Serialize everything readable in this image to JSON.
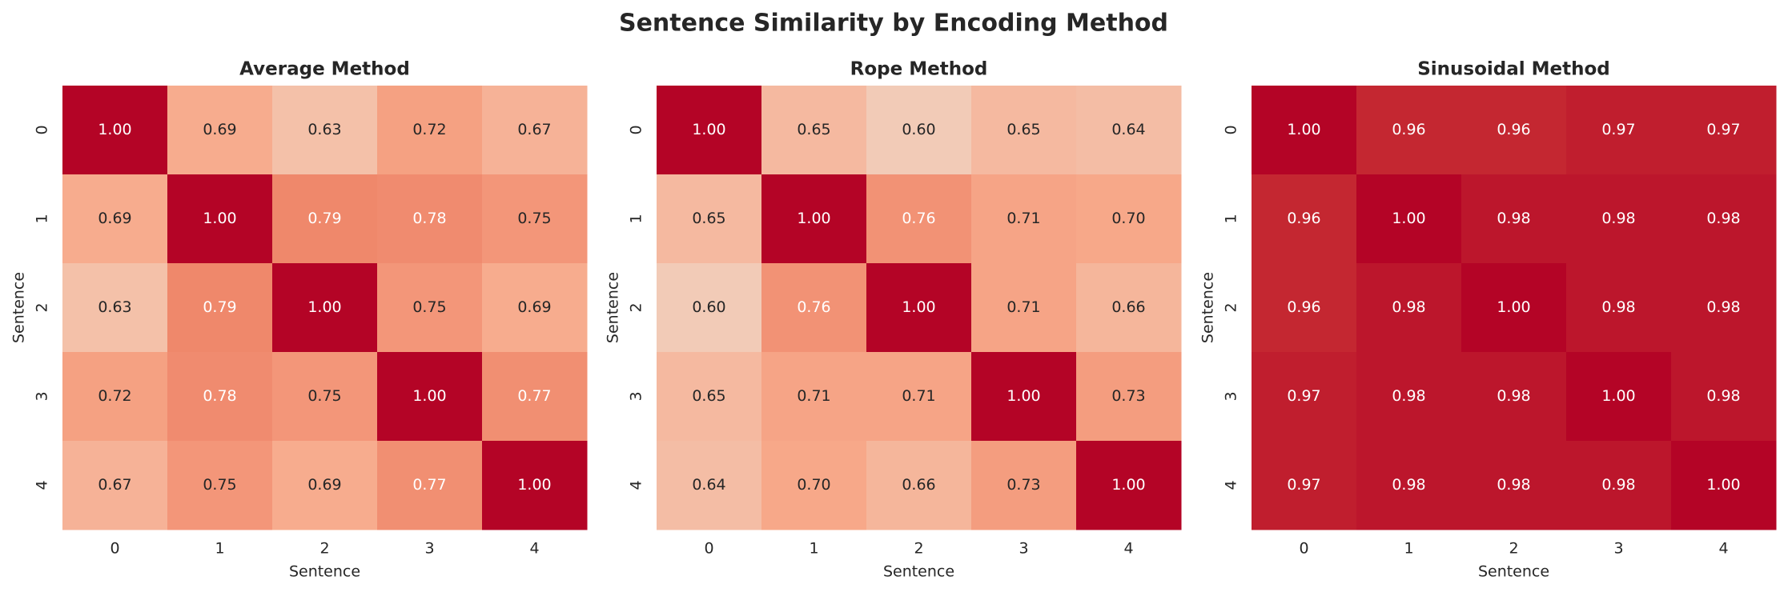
{
  "title": "Sentence Similarity by Encoding Method",
  "chart_data": [
    {
      "type": "heatmap",
      "title": "Average Method",
      "xlabel": "Sentence",
      "ylabel": "Sentence",
      "colormap": "coolwarm",
      "clim": [
        0,
        1
      ],
      "x": [
        "0",
        "1",
        "2",
        "3",
        "4"
      ],
      "y": [
        "0",
        "1",
        "2",
        "3",
        "4"
      ],
      "values": [
        [
          1.0,
          0.69,
          0.63,
          0.72,
          0.67
        ],
        [
          0.69,
          1.0,
          0.79,
          0.78,
          0.75
        ],
        [
          0.63,
          0.79,
          1.0,
          0.75,
          0.69
        ],
        [
          0.72,
          0.78,
          0.75,
          1.0,
          0.77
        ],
        [
          0.67,
          0.75,
          0.69,
          0.77,
          1.0
        ]
      ],
      "value_labels": [
        [
          "1.00",
          "0.69",
          "0.63",
          "0.72",
          "0.67"
        ],
        [
          "0.69",
          "1.00",
          "0.79",
          "0.78",
          "0.75"
        ],
        [
          "0.63",
          "0.79",
          "1.00",
          "0.75",
          "0.69"
        ],
        [
          "0.72",
          "0.78",
          "0.75",
          "1.00",
          "0.77"
        ],
        [
          "0.67",
          "0.75",
          "0.69",
          "0.77",
          "1.00"
        ]
      ]
    },
    {
      "type": "heatmap",
      "title": "Rope Method",
      "xlabel": "Sentence",
      "ylabel": "Sentence",
      "colormap": "coolwarm",
      "clim": [
        0,
        1
      ],
      "x": [
        "0",
        "1",
        "2",
        "3",
        "4"
      ],
      "y": [
        "0",
        "1",
        "2",
        "3",
        "4"
      ],
      "values": [
        [
          1.0,
          0.65,
          0.6,
          0.65,
          0.64
        ],
        [
          0.65,
          1.0,
          0.76,
          0.71,
          0.7
        ],
        [
          0.6,
          0.76,
          1.0,
          0.71,
          0.66
        ],
        [
          0.65,
          0.71,
          0.71,
          1.0,
          0.73
        ],
        [
          0.64,
          0.7,
          0.66,
          0.73,
          1.0
        ]
      ],
      "value_labels": [
        [
          "1.00",
          "0.65",
          "0.60",
          "0.65",
          "0.64"
        ],
        [
          "0.65",
          "1.00",
          "0.76",
          "0.71",
          "0.70"
        ],
        [
          "0.60",
          "0.76",
          "1.00",
          "0.71",
          "0.66"
        ],
        [
          "0.65",
          "0.71",
          "0.71",
          "1.00",
          "0.73"
        ],
        [
          "0.64",
          "0.70",
          "0.66",
          "0.73",
          "1.00"
        ]
      ]
    },
    {
      "type": "heatmap",
      "title": "Sinusoidal Method",
      "xlabel": "Sentence",
      "ylabel": "Sentence",
      "colormap": "coolwarm",
      "clim": [
        0,
        1
      ],
      "x": [
        "0",
        "1",
        "2",
        "3",
        "4"
      ],
      "y": [
        "0",
        "1",
        "2",
        "3",
        "4"
      ],
      "values": [
        [
          1.0,
          0.96,
          0.96,
          0.97,
          0.97
        ],
        [
          0.96,
          1.0,
          0.98,
          0.98,
          0.98
        ],
        [
          0.96,
          0.98,
          1.0,
          0.98,
          0.98
        ],
        [
          0.97,
          0.98,
          0.98,
          1.0,
          0.98
        ],
        [
          0.97,
          0.98,
          0.98,
          0.98,
          1.0
        ]
      ],
      "value_labels": [
        [
          "1.00",
          "0.96",
          "0.96",
          "0.97",
          "0.97"
        ],
        [
          "0.96",
          "1.00",
          "0.98",
          "0.98",
          "0.98"
        ],
        [
          "0.96",
          "0.98",
          "1.00",
          "0.98",
          "0.98"
        ],
        [
          "0.97",
          "0.98",
          "0.98",
          "1.00",
          "0.98"
        ],
        [
          "0.97",
          "0.98",
          "0.98",
          "0.98",
          "1.00"
        ]
      ]
    }
  ]
}
